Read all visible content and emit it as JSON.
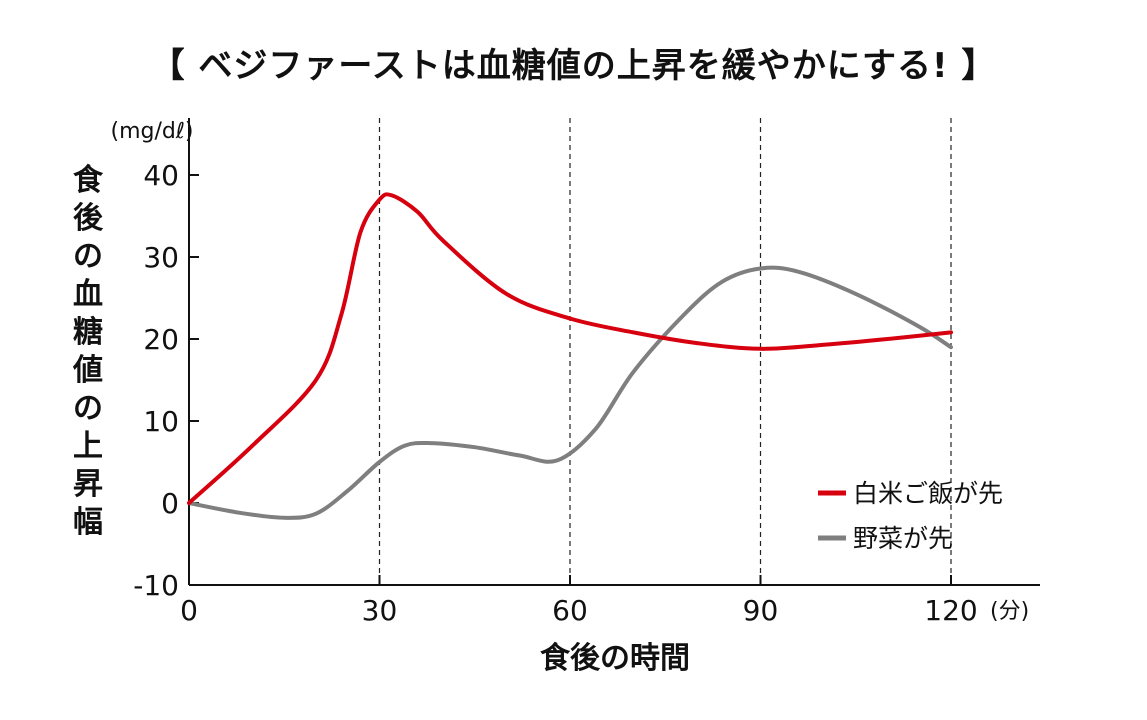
{
  "chart_data": {
    "type": "line",
    "title": "【 ベジファーストは血糖値の上昇を緩やかにする! 】",
    "xlabel": "食後の時間",
    "xunit": "(分)",
    "ylabel": "食後の血糖値の上昇幅",
    "yunit": "(mg/dℓ)",
    "xlim": [
      0,
      134
    ],
    "ylim": [
      -10,
      47
    ],
    "xticks": [
      0,
      30,
      60,
      90,
      120
    ],
    "yticks": [
      -10,
      0,
      10,
      20,
      30,
      40
    ],
    "vlines": [
      30,
      60,
      90,
      120
    ],
    "legend_position": "bottom-right",
    "series": [
      {
        "name": "白米ご飯が先",
        "color": "#d7000f",
        "x": [
          0,
          10,
          20,
          24,
          27,
          30,
          32,
          36,
          40,
          50,
          60,
          70,
          80,
          90,
          100,
          110,
          120
        ],
        "y": [
          0,
          7,
          15,
          23,
          33,
          37,
          37.5,
          35.5,
          32,
          25.5,
          22.5,
          20.8,
          19.5,
          18.8,
          19.3,
          20,
          20.8
        ]
      },
      {
        "name": "野菜が先",
        "color": "#7f7f7f",
        "x": [
          0,
          8,
          15,
          20,
          25,
          30,
          34,
          38,
          45,
          52,
          58,
          64,
          70,
          78,
          84,
          90,
          96,
          105,
          115,
          120
        ],
        "y": [
          0,
          -1.2,
          -1.8,
          -1.3,
          1.5,
          5,
          7,
          7.3,
          6.8,
          5.8,
          5.2,
          9,
          16,
          23,
          27,
          28.6,
          28.2,
          25.5,
          21.5,
          19
        ]
      }
    ]
  }
}
